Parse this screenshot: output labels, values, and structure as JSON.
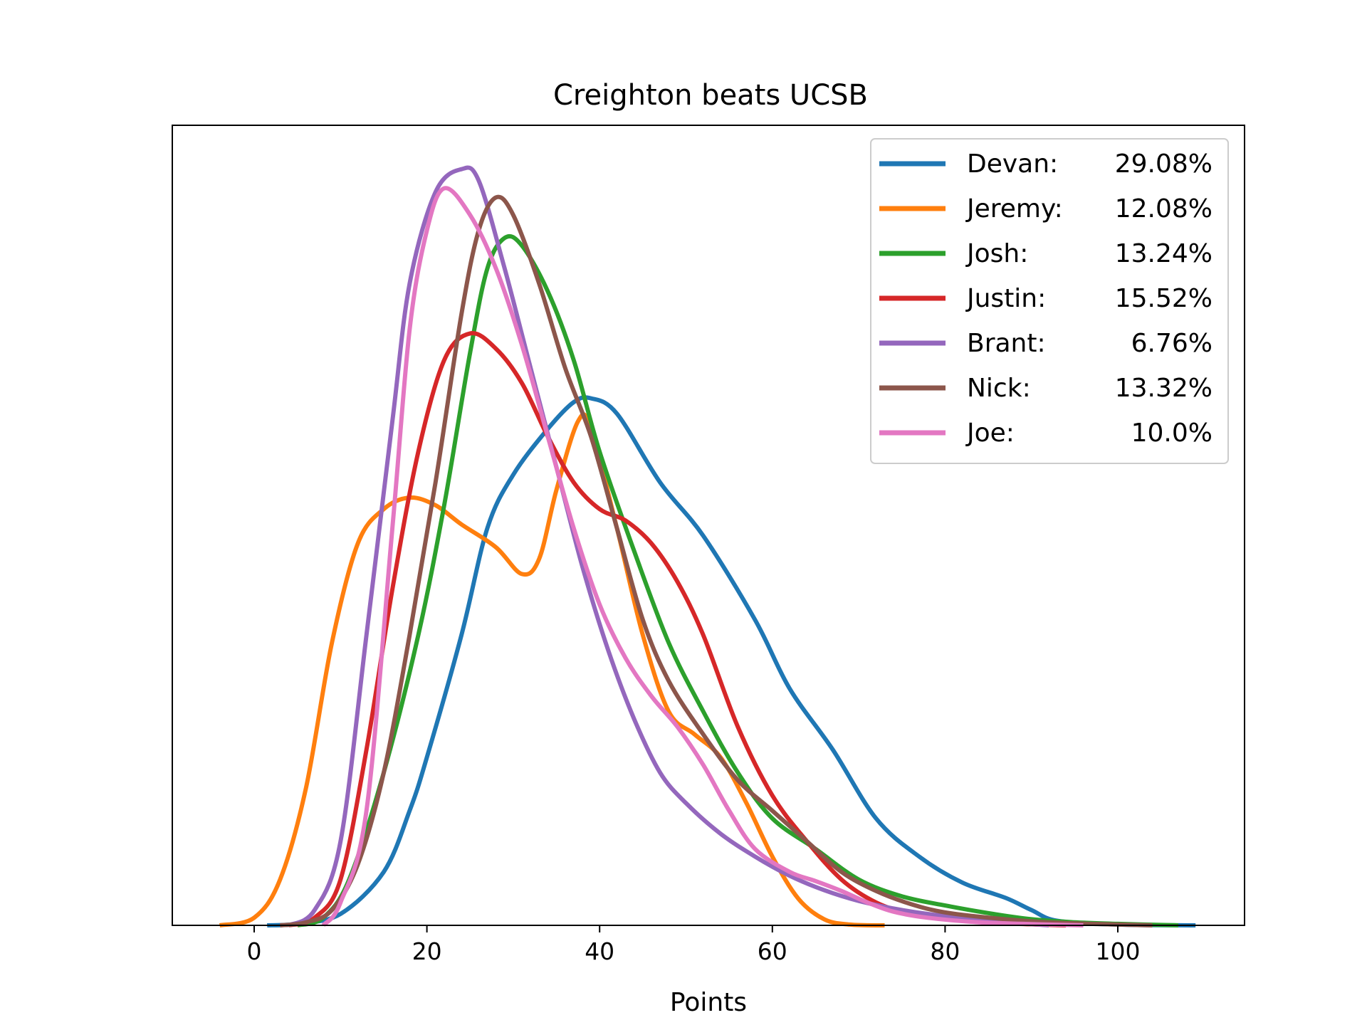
{
  "chart_data": {
    "type": "line",
    "title": "Creighton beats UCSB",
    "xlabel": "Points",
    "ylabel": "",
    "xlim": [
      -10,
      115
    ],
    "ylim": [
      0,
      1.0
    ],
    "xticks": [
      0,
      20,
      40,
      60,
      80,
      100
    ],
    "xtick_labels": [
      "0",
      "20",
      "40",
      "60",
      "80",
      "100"
    ],
    "yticks_shown": false,
    "grid": false,
    "legend_position": "top-right",
    "series": [
      {
        "name": "Devan:",
        "label_value": "29.08%",
        "color": "#1f77b4",
        "points": [
          [
            1.5,
            0.0
          ],
          [
            5,
            0.002
          ],
          [
            10,
            0.015
          ],
          [
            15,
            0.07
          ],
          [
            18,
            0.15
          ],
          [
            20,
            0.22
          ],
          [
            24,
            0.38
          ],
          [
            27,
            0.52
          ],
          [
            30,
            0.59
          ],
          [
            34,
            0.65
          ],
          [
            37,
            0.685
          ],
          [
            39,
            0.69
          ],
          [
            42,
            0.67
          ],
          [
            47,
            0.58
          ],
          [
            52,
            0.51
          ],
          [
            58,
            0.4
          ],
          [
            62,
            0.31
          ],
          [
            67,
            0.23
          ],
          [
            72,
            0.14
          ],
          [
            77,
            0.09
          ],
          [
            82,
            0.056
          ],
          [
            87,
            0.036
          ],
          [
            90,
            0.02
          ],
          [
            93,
            0.006
          ],
          [
            100,
            0.001
          ],
          [
            109,
            0.0
          ]
        ]
      },
      {
        "name": "Jeremy:",
        "label_value": "12.08%",
        "color": "#ff7f0e",
        "points": [
          [
            -4,
            0.0
          ],
          [
            0,
            0.01
          ],
          [
            3,
            0.06
          ],
          [
            6,
            0.18
          ],
          [
            9,
            0.37
          ],
          [
            12,
            0.5
          ],
          [
            15,
            0.545
          ],
          [
            18,
            0.56
          ],
          [
            21,
            0.55
          ],
          [
            24,
            0.525
          ],
          [
            28,
            0.495
          ],
          [
            31,
            0.46
          ],
          [
            33,
            0.48
          ],
          [
            35,
            0.57
          ],
          [
            37.5,
            0.66
          ],
          [
            39,
            0.65
          ],
          [
            42,
            0.52
          ],
          [
            45,
            0.38
          ],
          [
            48,
            0.28
          ],
          [
            51,
            0.25
          ],
          [
            54,
            0.22
          ],
          [
            57,
            0.16
          ],
          [
            60,
            0.09
          ],
          [
            63,
            0.035
          ],
          [
            66,
            0.008
          ],
          [
            69,
            0.001
          ],
          [
            73,
            0.0
          ]
        ]
      },
      {
        "name": "Josh:",
        "label_value": "13.24%",
        "color": "#2ca02c",
        "points": [
          [
            5,
            0.0
          ],
          [
            8,
            0.01
          ],
          [
            11,
            0.06
          ],
          [
            15,
            0.2
          ],
          [
            19,
            0.38
          ],
          [
            22,
            0.55
          ],
          [
            25,
            0.75
          ],
          [
            27,
            0.86
          ],
          [
            29,
            0.9
          ],
          [
            31,
            0.89
          ],
          [
            34,
            0.83
          ],
          [
            37,
            0.74
          ],
          [
            40,
            0.62
          ],
          [
            44,
            0.49
          ],
          [
            48,
            0.37
          ],
          [
            52,
            0.28
          ],
          [
            56,
            0.2
          ],
          [
            60,
            0.14
          ],
          [
            65,
            0.1
          ],
          [
            70,
            0.06
          ],
          [
            75,
            0.038
          ],
          [
            80,
            0.026
          ],
          [
            85,
            0.016
          ],
          [
            90,
            0.008
          ],
          [
            95,
            0.004
          ],
          [
            100,
            0.002
          ],
          [
            107,
            0.0
          ]
        ]
      },
      {
        "name": "Justin:",
        "label_value": "15.52%",
        "color": "#d62728",
        "points": [
          [
            4,
            0.0
          ],
          [
            7,
            0.01
          ],
          [
            10,
            0.06
          ],
          [
            13,
            0.23
          ],
          [
            16,
            0.44
          ],
          [
            19,
            0.62
          ],
          [
            22,
            0.74
          ],
          [
            25,
            0.775
          ],
          [
            28,
            0.755
          ],
          [
            31,
            0.71
          ],
          [
            34,
            0.64
          ],
          [
            37,
            0.58
          ],
          [
            40,
            0.545
          ],
          [
            43,
            0.53
          ],
          [
            46,
            0.5
          ],
          [
            49,
            0.45
          ],
          [
            52,
            0.38
          ],
          [
            56,
            0.26
          ],
          [
            60,
            0.17
          ],
          [
            64,
            0.11
          ],
          [
            68,
            0.06
          ],
          [
            72,
            0.03
          ],
          [
            76,
            0.015
          ],
          [
            80,
            0.008
          ],
          [
            86,
            0.003
          ],
          [
            94,
            0.0
          ]
        ]
      },
      {
        "name": "Brant:",
        "label_value": "6.76%",
        "color": "#9467bd",
        "points": [
          [
            4,
            0.0
          ],
          [
            7,
            0.02
          ],
          [
            10,
            0.11
          ],
          [
            13,
            0.38
          ],
          [
            16,
            0.66
          ],
          [
            18,
            0.84
          ],
          [
            21,
            0.96
          ],
          [
            24,
            0.99
          ],
          [
            26,
            0.975
          ],
          [
            29,
            0.86
          ],
          [
            32,
            0.73
          ],
          [
            35,
            0.6
          ],
          [
            38,
            0.47
          ],
          [
            41,
            0.36
          ],
          [
            44,
            0.27
          ],
          [
            47,
            0.2
          ],
          [
            50,
            0.16
          ],
          [
            54,
            0.12
          ],
          [
            58,
            0.09
          ],
          [
            62,
            0.065
          ],
          [
            66,
            0.046
          ],
          [
            70,
            0.032
          ],
          [
            75,
            0.02
          ],
          [
            80,
            0.012
          ],
          [
            86,
            0.005
          ],
          [
            92,
            0.0
          ]
        ]
      },
      {
        "name": "Nick:",
        "label_value": "13.32%",
        "color": "#8c564b",
        "points": [
          [
            3,
            0.0
          ],
          [
            6,
            0.004
          ],
          [
            9,
            0.02
          ],
          [
            12,
            0.08
          ],
          [
            15,
            0.2
          ],
          [
            18,
            0.38
          ],
          [
            21,
            0.58
          ],
          [
            24,
            0.8
          ],
          [
            26,
            0.91
          ],
          [
            28,
            0.953
          ],
          [
            30,
            0.93
          ],
          [
            33,
            0.84
          ],
          [
            36,
            0.73
          ],
          [
            39,
            0.64
          ],
          [
            42,
            0.52
          ],
          [
            45,
            0.4
          ],
          [
            48,
            0.32
          ],
          [
            52,
            0.25
          ],
          [
            56,
            0.19
          ],
          [
            60,
            0.15
          ],
          [
            64,
            0.11
          ],
          [
            68,
            0.07
          ],
          [
            72,
            0.045
          ],
          [
            76,
            0.028
          ],
          [
            80,
            0.017
          ],
          [
            86,
            0.009
          ],
          [
            92,
            0.004
          ],
          [
            100,
            0.001
          ],
          [
            104,
            0.0
          ]
        ]
      },
      {
        "name": "Joe:",
        "label_value": "10.0%",
        "color": "#e377c2",
        "points": [
          [
            8,
            0.0
          ],
          [
            10,
            0.03
          ],
          [
            13,
            0.15
          ],
          [
            16,
            0.52
          ],
          [
            18,
            0.78
          ],
          [
            20,
            0.91
          ],
          [
            22,
            0.965
          ],
          [
            25,
            0.93
          ],
          [
            28,
            0.86
          ],
          [
            31,
            0.76
          ],
          [
            34,
            0.64
          ],
          [
            37,
            0.52
          ],
          [
            40,
            0.42
          ],
          [
            43,
            0.35
          ],
          [
            46,
            0.3
          ],
          [
            49,
            0.26
          ],
          [
            52,
            0.21
          ],
          [
            55,
            0.15
          ],
          [
            58,
            0.1
          ],
          [
            62,
            0.07
          ],
          [
            65,
            0.058
          ],
          [
            68,
            0.045
          ],
          [
            71,
            0.03
          ],
          [
            74,
            0.018
          ],
          [
            78,
            0.01
          ],
          [
            84,
            0.004
          ],
          [
            92,
            0.001
          ],
          [
            96,
            0.0
          ]
        ]
      }
    ]
  }
}
